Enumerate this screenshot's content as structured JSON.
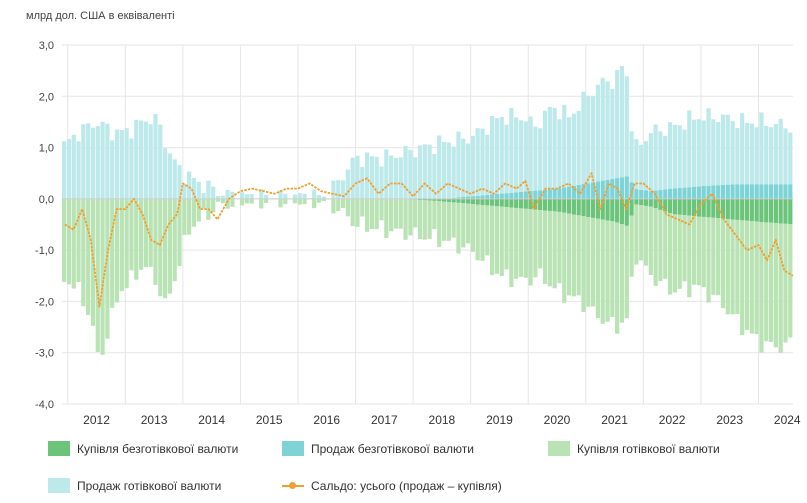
{
  "chart_data": {
    "type": "bar",
    "unit_label": "млрд дол. США в еквіваленті",
    "ylim": [
      -4.0,
      3.0
    ],
    "yticks": [
      "3,0",
      "2,0",
      "1,0",
      "0,0",
      "-1,0",
      "-2,0",
      "-3,0",
      "-4,0"
    ],
    "ytick_values": [
      3,
      2,
      1,
      0,
      -1,
      -2,
      -3,
      -4
    ],
    "years": [
      "2012",
      "2013",
      "2014",
      "2015",
      "2016",
      "2017",
      "2018",
      "2019",
      "2020",
      "2021",
      "2022",
      "2023",
      "2024"
    ],
    "colors": {
      "buy_cashless": "#6cc47b",
      "sell_cashless": "#7dd3d6",
      "buy_cash": "#b9e3b4",
      "sell_cash": "#bde9ea",
      "balance": "#f0a030"
    },
    "series": [
      {
        "key": "buy_cashless",
        "name": "Купівля безготівкової валюти"
      },
      {
        "key": "sell_cashless",
        "name": "Продаж безготівкової валюти"
      },
      {
        "key": "buy_cash",
        "name": "Купівля готівкової валюти"
      },
      {
        "key": "sell_cash",
        "name": "Продаж готівкової валюти"
      },
      {
        "key": "balance",
        "name": "Сальдо: усього (продаж – купівля)"
      }
    ],
    "anchors": {
      "sell_cash": [
        [
          2011.9,
          1.0
        ],
        [
          2012.2,
          1.3
        ],
        [
          2012.5,
          1.5
        ],
        [
          2012.8,
          1.3
        ],
        [
          2013.0,
          1.3
        ],
        [
          2013.3,
          1.5
        ],
        [
          2013.5,
          1.6
        ],
        [
          2013.6,
          1.4
        ],
        [
          2013.8,
          0.8
        ],
        [
          2014.0,
          0.5
        ],
        [
          2014.3,
          0.3
        ],
        [
          2014.5,
          0.2
        ],
        [
          2014.7,
          0.1
        ],
        [
          2015.0,
          0.05
        ],
        [
          2016.0,
          0.05
        ],
        [
          2016.5,
          0.05
        ],
        [
          2016.8,
          0.5
        ],
        [
          2017.0,
          0.8
        ],
        [
          2017.5,
          0.8
        ],
        [
          2018.0,
          0.95
        ],
        [
          2018.5,
          1.1
        ],
        [
          2019.0,
          1.2
        ],
        [
          2019.5,
          1.6
        ],
        [
          2019.9,
          1.6
        ],
        [
          2020.1,
          1.4
        ],
        [
          2020.4,
          1.8
        ],
        [
          2020.7,
          1.6
        ],
        [
          2021.0,
          2.0
        ],
        [
          2021.3,
          2.3
        ],
        [
          2021.5,
          2.3
        ],
        [
          2021.65,
          2.7
        ],
        [
          2021.75,
          2.0
        ],
        [
          2021.8,
          0.9
        ],
        [
          2022.1,
          1.3
        ],
        [
          2022.5,
          1.4
        ],
        [
          2022.9,
          1.6
        ],
        [
          2023.3,
          1.6
        ],
        [
          2023.7,
          1.5
        ],
        [
          2024.0,
          1.5
        ],
        [
          2024.6,
          1.4
        ]
      ],
      "sell_cashless": [
        [
          2011.9,
          0.0
        ],
        [
          2017.8,
          0.0
        ],
        [
          2018.5,
          0.0
        ],
        [
          2019.0,
          0.05
        ],
        [
          2019.5,
          0.1
        ],
        [
          2020.0,
          0.15
        ],
        [
          2020.5,
          0.2
        ],
        [
          2021.0,
          0.3
        ],
        [
          2021.5,
          0.4
        ],
        [
          2021.75,
          0.45
        ],
        [
          2021.8,
          0.2
        ],
        [
          2022.1,
          0.15
        ],
        [
          2022.5,
          0.2
        ],
        [
          2023.0,
          0.25
        ],
        [
          2023.5,
          0.28
        ],
        [
          2024.0,
          0.28
        ],
        [
          2024.6,
          0.28
        ]
      ],
      "buy_cash": [
        [
          2011.9,
          -1.5
        ],
        [
          2012.2,
          -1.8
        ],
        [
          2012.4,
          -2.3
        ],
        [
          2012.55,
          -3.2
        ],
        [
          2012.7,
          -2.6
        ],
        [
          2012.9,
          -1.8
        ],
        [
          2013.1,
          -1.6
        ],
        [
          2013.3,
          -1.3
        ],
        [
          2013.5,
          -1.5
        ],
        [
          2013.7,
          -2.1
        ],
        [
          2013.9,
          -1.4
        ],
        [
          2014.1,
          -0.6
        ],
        [
          2014.3,
          -0.4
        ],
        [
          2014.6,
          -0.15
        ],
        [
          2015.0,
          -0.05
        ],
        [
          2016.5,
          -0.05
        ],
        [
          2016.8,
          -0.3
        ],
        [
          2017.0,
          -0.5
        ],
        [
          2017.5,
          -0.6
        ],
        [
          2018.0,
          -0.7
        ],
        [
          2018.5,
          -0.8
        ],
        [
          2019.0,
          -1.0
        ],
        [
          2019.5,
          -1.5
        ],
        [
          2019.9,
          -1.6
        ],
        [
          2020.2,
          -1.5
        ],
        [
          2020.5,
          -1.8
        ],
        [
          2020.9,
          -2.0
        ],
        [
          2021.2,
          -2.3
        ],
        [
          2021.5,
          -2.5
        ],
        [
          2021.75,
          -2.3
        ],
        [
          2021.8,
          -1.0
        ],
        [
          2022.1,
          -1.5
        ],
        [
          2022.5,
          -1.8
        ],
        [
          2022.9,
          -1.7
        ],
        [
          2023.3,
          -2.0
        ],
        [
          2023.7,
          -2.5
        ],
        [
          2024.0,
          -2.8
        ],
        [
          2024.3,
          -2.9
        ],
        [
          2024.6,
          -2.8
        ]
      ],
      "buy_cashless": [
        [
          2011.9,
          0.0
        ],
        [
          2017.8,
          0.0
        ],
        [
          2018.5,
          -0.05
        ],
        [
          2019.0,
          -0.1
        ],
        [
          2019.5,
          -0.15
        ],
        [
          2020.0,
          -0.2
        ],
        [
          2020.5,
          -0.25
        ],
        [
          2021.0,
          -0.35
        ],
        [
          2021.5,
          -0.45
        ],
        [
          2021.75,
          -0.55
        ],
        [
          2021.8,
          -0.1
        ],
        [
          2022.1,
          -0.15
        ],
        [
          2022.5,
          -0.3
        ],
        [
          2023.0,
          -0.35
        ],
        [
          2023.5,
          -0.4
        ],
        [
          2024.0,
          -0.45
        ],
        [
          2024.6,
          -0.5
        ]
      ],
      "balance": [
        [
          2011.95,
          -0.5
        ],
        [
          2012.1,
          -0.6
        ],
        [
          2012.25,
          -0.2
        ],
        [
          2012.4,
          -0.8
        ],
        [
          2012.55,
          -2.1
        ],
        [
          2012.7,
          -1.0
        ],
        [
          2012.85,
          -0.2
        ],
        [
          2013.0,
          -0.2
        ],
        [
          2013.15,
          0.0
        ],
        [
          2013.3,
          -0.3
        ],
        [
          2013.45,
          -0.8
        ],
        [
          2013.6,
          -0.9
        ],
        [
          2013.75,
          -0.5
        ],
        [
          2013.9,
          -0.3
        ],
        [
          2014.0,
          0.3
        ],
        [
          2014.15,
          0.2
        ],
        [
          2014.3,
          -0.2
        ],
        [
          2014.45,
          -0.2
        ],
        [
          2014.6,
          -0.4
        ],
        [
          2014.8,
          0.0
        ],
        [
          2015.0,
          0.15
        ],
        [
          2015.2,
          0.2
        ],
        [
          2015.4,
          0.15
        ],
        [
          2015.6,
          0.1
        ],
        [
          2015.8,
          0.2
        ],
        [
          2016.0,
          0.2
        ],
        [
          2016.2,
          0.3
        ],
        [
          2016.4,
          0.15
        ],
        [
          2016.6,
          0.1
        ],
        [
          2016.8,
          0.05
        ],
        [
          2017.0,
          0.3
        ],
        [
          2017.2,
          0.4
        ],
        [
          2017.4,
          0.1
        ],
        [
          2017.6,
          0.3
        ],
        [
          2017.8,
          0.3
        ],
        [
          2018.0,
          0.05
        ],
        [
          2018.2,
          0.3
        ],
        [
          2018.4,
          0.1
        ],
        [
          2018.6,
          0.3
        ],
        [
          2018.8,
          0.2
        ],
        [
          2019.0,
          0.1
        ],
        [
          2019.2,
          0.2
        ],
        [
          2019.4,
          0.1
        ],
        [
          2019.6,
          0.3
        ],
        [
          2019.8,
          0.2
        ],
        [
          2019.95,
          0.35
        ],
        [
          2020.1,
          -0.2
        ],
        [
          2020.3,
          0.2
        ],
        [
          2020.5,
          0.2
        ],
        [
          2020.7,
          0.3
        ],
        [
          2020.9,
          0.1
        ],
        [
          2021.1,
          0.5
        ],
        [
          2021.25,
          -0.2
        ],
        [
          2021.4,
          0.3
        ],
        [
          2021.55,
          0.2
        ],
        [
          2021.7,
          -0.2
        ],
        [
          2021.85,
          0.3
        ],
        [
          2022.0,
          0.3
        ],
        [
          2022.2,
          0.1
        ],
        [
          2022.4,
          -0.3
        ],
        [
          2022.6,
          -0.4
        ],
        [
          2022.8,
          -0.5
        ],
        [
          2023.0,
          -0.1
        ],
        [
          2023.2,
          0.1
        ],
        [
          2023.4,
          -0.4
        ],
        [
          2023.6,
          -0.7
        ],
        [
          2023.8,
          -1.0
        ],
        [
          2024.0,
          -0.9
        ],
        [
          2024.15,
          -1.2
        ],
        [
          2024.3,
          -0.8
        ],
        [
          2024.45,
          -1.4
        ],
        [
          2024.6,
          -1.5
        ]
      ]
    }
  }
}
